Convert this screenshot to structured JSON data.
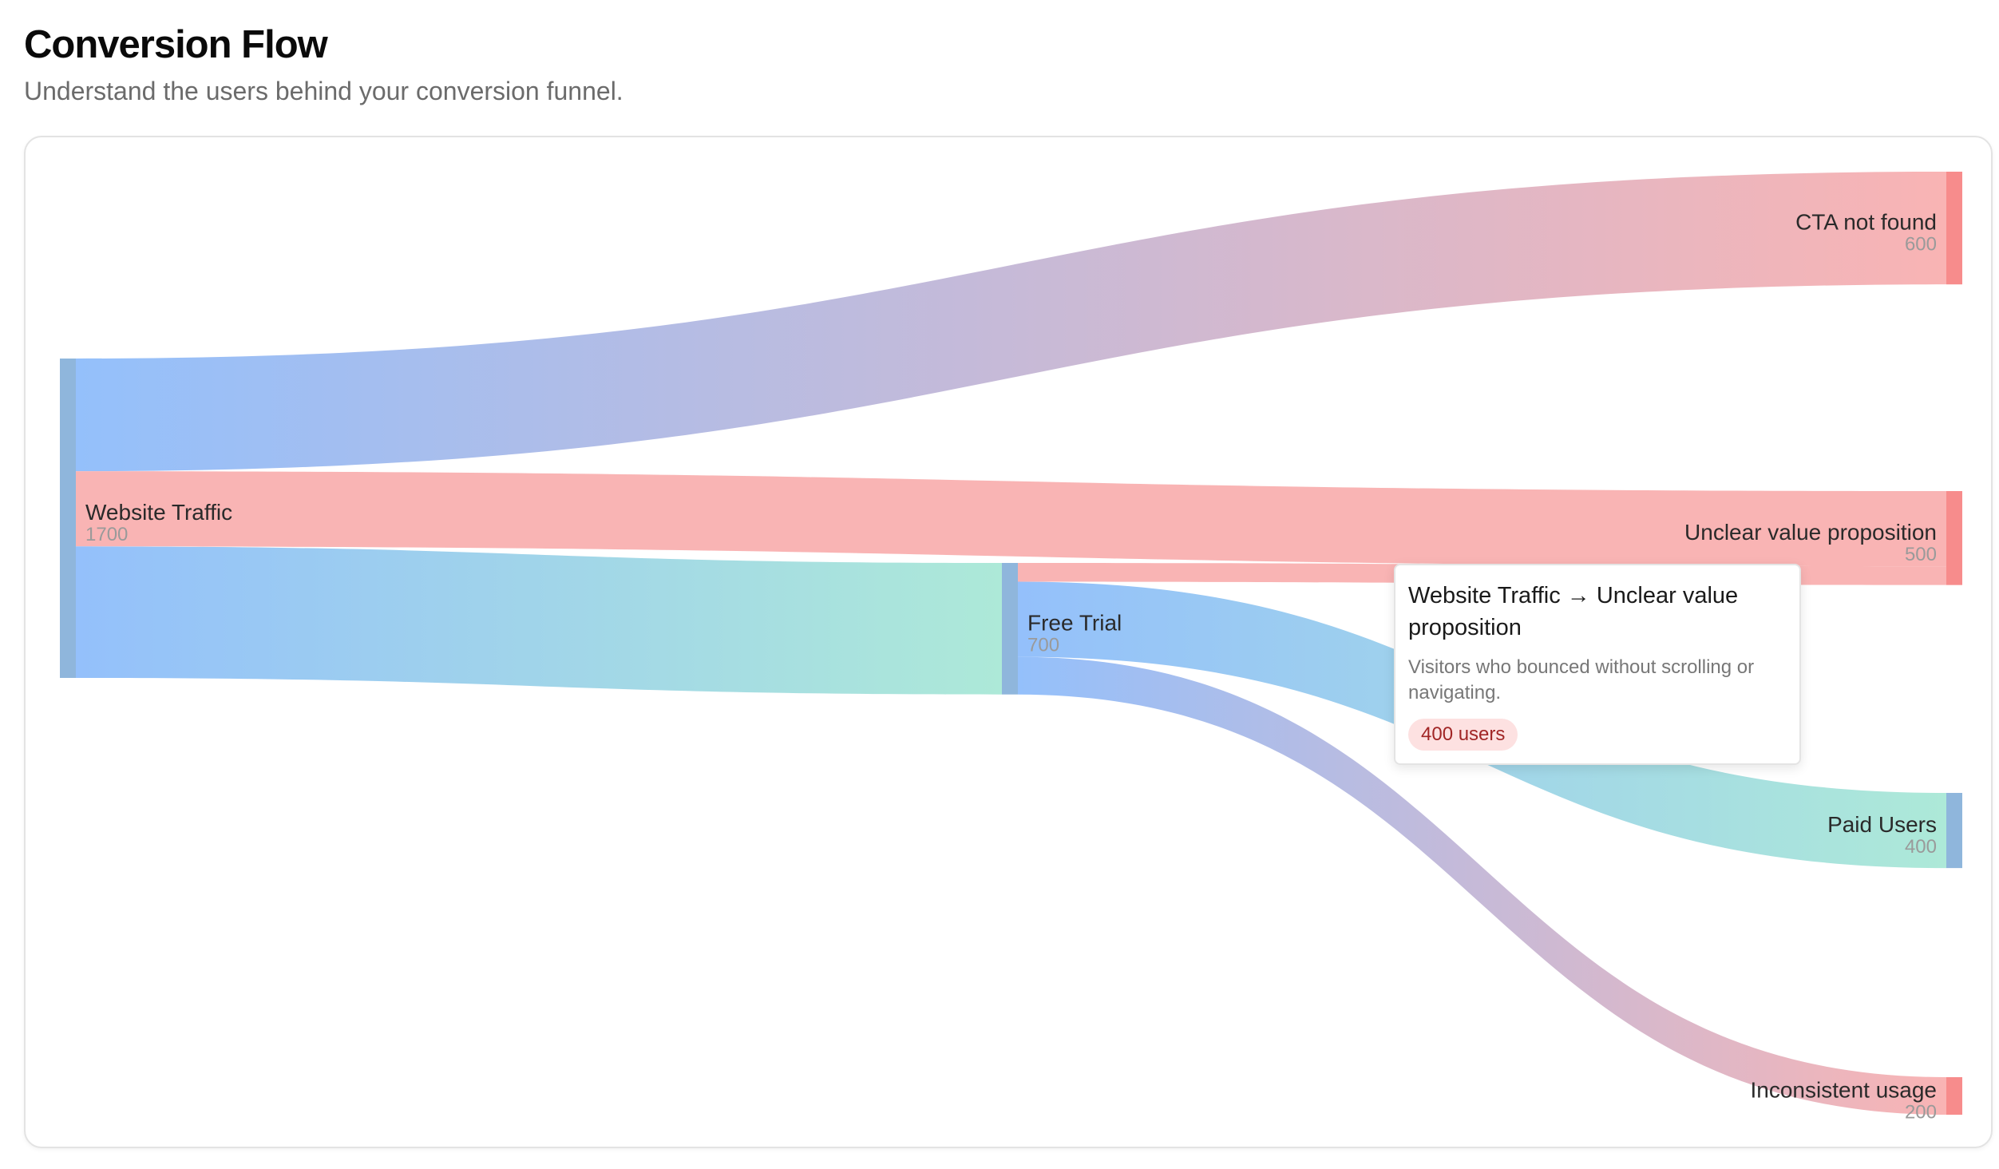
{
  "header": {
    "title": "Conversion Flow",
    "subtitle": "Understand the users behind your conversion funnel."
  },
  "colors": {
    "blue": "#94c0fb",
    "purple": "#bdbee6",
    "red": "#f9b4b4",
    "green": "#ade9d8",
    "node_blue": "#8fb6dc",
    "node_red": "#f78c8c"
  },
  "chart_data": {
    "type": "sankey",
    "nodes": [
      {
        "id": "website-traffic",
        "name": "Website Traffic",
        "value": 1700
      },
      {
        "id": "free-trial",
        "name": "Free Trial",
        "value": 700
      },
      {
        "id": "cta-not-found",
        "name": "CTA not found",
        "value": 600
      },
      {
        "id": "unclear-value",
        "name": "Unclear value proposition",
        "value": 500
      },
      {
        "id": "paid-users",
        "name": "Paid Users",
        "value": 400
      },
      {
        "id": "inconsistent-usage",
        "name": "Inconsistent usage",
        "value": 200
      }
    ],
    "links": [
      {
        "source": "website-traffic",
        "target": "cta-not-found",
        "value": 600
      },
      {
        "source": "website-traffic",
        "target": "unclear-value",
        "value": 400
      },
      {
        "source": "website-traffic",
        "target": "free-trial",
        "value": 700
      },
      {
        "source": "free-trial",
        "target": "unclear-value",
        "value": 100
      },
      {
        "source": "free-trial",
        "target": "paid-users",
        "value": 400
      },
      {
        "source": "free-trial",
        "target": "inconsistent-usage",
        "value": 200
      }
    ]
  },
  "tooltip": {
    "title": "Website Traffic → Unclear value proposition",
    "description": "Visitors who bounced without scrolling or navigating.",
    "badge": "400 users"
  }
}
